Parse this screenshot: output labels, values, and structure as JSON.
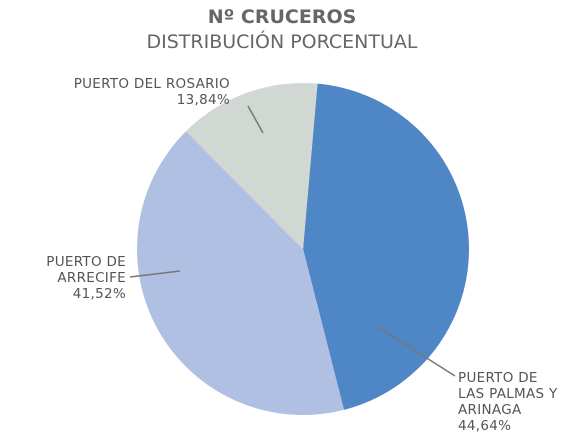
{
  "chart_data": {
    "type": "pie",
    "title": "Nº CRUCEROS",
    "subtitle": "DISTRIBUCIÓN PORCENTUAL",
    "categories": [
      "PUERTO DE LAS PALMAS Y ARINAGA",
      "PUERTO DE ARRECIFE",
      "PUERTO DEL ROSARIO"
    ],
    "values": [
      44.64,
      41.52,
      13.84
    ],
    "value_labels": [
      "44,64%",
      "41,52%",
      "13,84%"
    ],
    "colors": [
      "#4f86c6",
      "#b0c0e2",
      "#d1d7d3"
    ]
  }
}
